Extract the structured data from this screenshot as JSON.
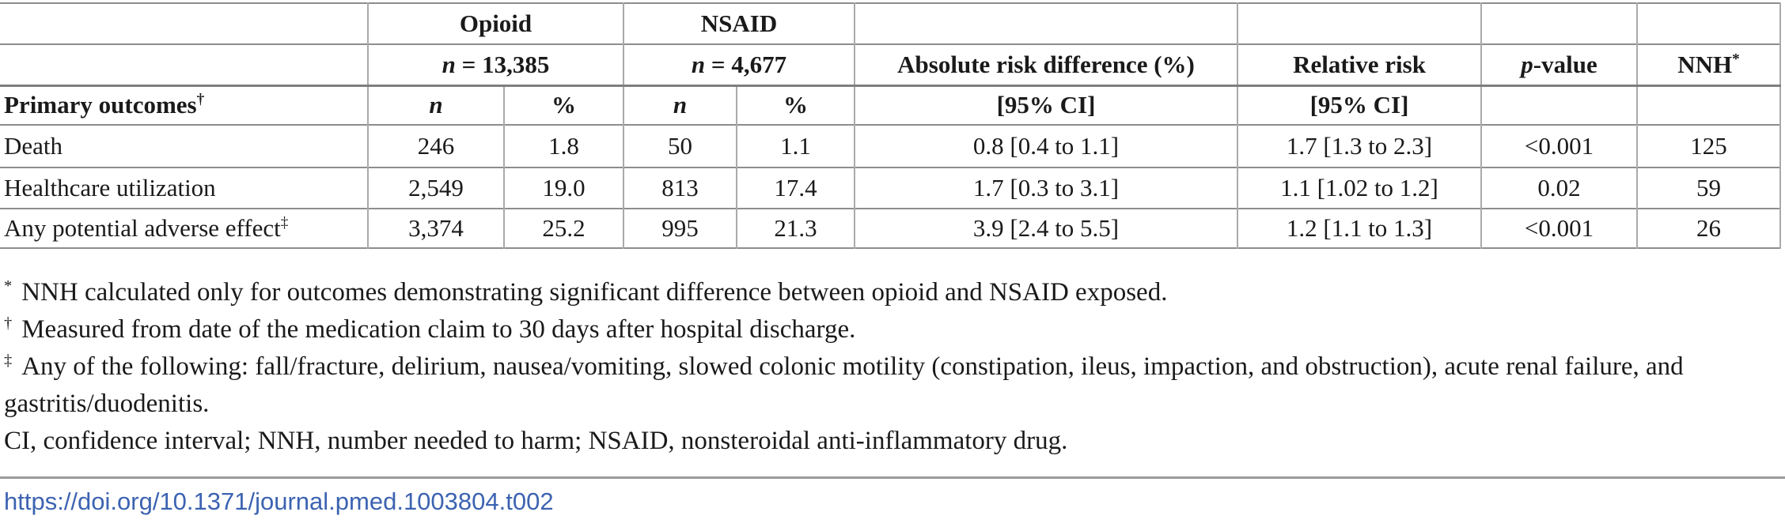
{
  "table": {
    "header": {
      "opioid": {
        "label": "Opioid",
        "n_symbol": "n",
        "n_rest": "= 13,385"
      },
      "nsaid": {
        "label": "NSAID",
        "n_symbol": "n",
        "n_rest": "= 4,677"
      },
      "abs_risk": {
        "line1": "Absolute risk difference (%)",
        "line2": "[95% CI]"
      },
      "rel_risk": {
        "line1": "Relative risk",
        "line2": "[95% CI]"
      },
      "p_value": {
        "symbol": "p",
        "rest": "-value"
      },
      "nnh": {
        "label": "NNH",
        "sup": "*"
      },
      "outcomes": {
        "label": "Primary outcomes",
        "sup": "†"
      },
      "sub_n": "n",
      "sub_pct": "%"
    },
    "rows": [
      {
        "label": "Death",
        "sup": "",
        "opioid_n": "246",
        "opioid_pct": "1.8",
        "nsaid_n": "50",
        "nsaid_pct": "1.1",
        "ard": "0.8 [0.4 to 1.1]",
        "rr": "1.7 [1.3 to 2.3]",
        "p": "<0.001",
        "nnh": "125"
      },
      {
        "label": "Healthcare utilization",
        "sup": "",
        "opioid_n": "2,549",
        "opioid_pct": "19.0",
        "nsaid_n": "813",
        "nsaid_pct": "17.4",
        "ard": "1.7 [0.3 to 3.1]",
        "rr": "1.1 [1.02 to 1.2]",
        "p": "0.02",
        "nnh": "59"
      },
      {
        "label": "Any potential adverse effect",
        "sup": "‡",
        "opioid_n": "3,374",
        "opioid_pct": "25.2",
        "nsaid_n": "995",
        "nsaid_pct": "21.3",
        "ard": "3.9 [2.4 to 5.5]",
        "rr": "1.2 [1.1 to 1.3]",
        "p": "<0.001",
        "nnh": "26"
      }
    ]
  },
  "footnotes": {
    "items": [
      {
        "marker": "*",
        "text": "NNH calculated only for outcomes demonstrating significant difference between opioid and NSAID exposed."
      },
      {
        "marker": "†",
        "text": "Measured from date of the medication claim to 30 days after hospital discharge."
      },
      {
        "marker": "‡",
        "text": "Any of the following: fall/fracture, delirium, nausea/vomiting, slowed colonic motility (constipation, ileus, impaction, and obstruction), acute renal failure, and gastritis/duodenitis."
      }
    ],
    "abbrev": "CI, confidence interval; NNH, number needed to harm; NSAID, nonsteroidal anti-inflammatory drug."
  },
  "doi": {
    "text": "https://doi.org/10.1371/journal.pmed.1003804.t002"
  },
  "colors": {
    "link_blue": "#3c63b1",
    "rule_gray": "#9b9b9b",
    "border_gray": "#8d8d8d"
  }
}
